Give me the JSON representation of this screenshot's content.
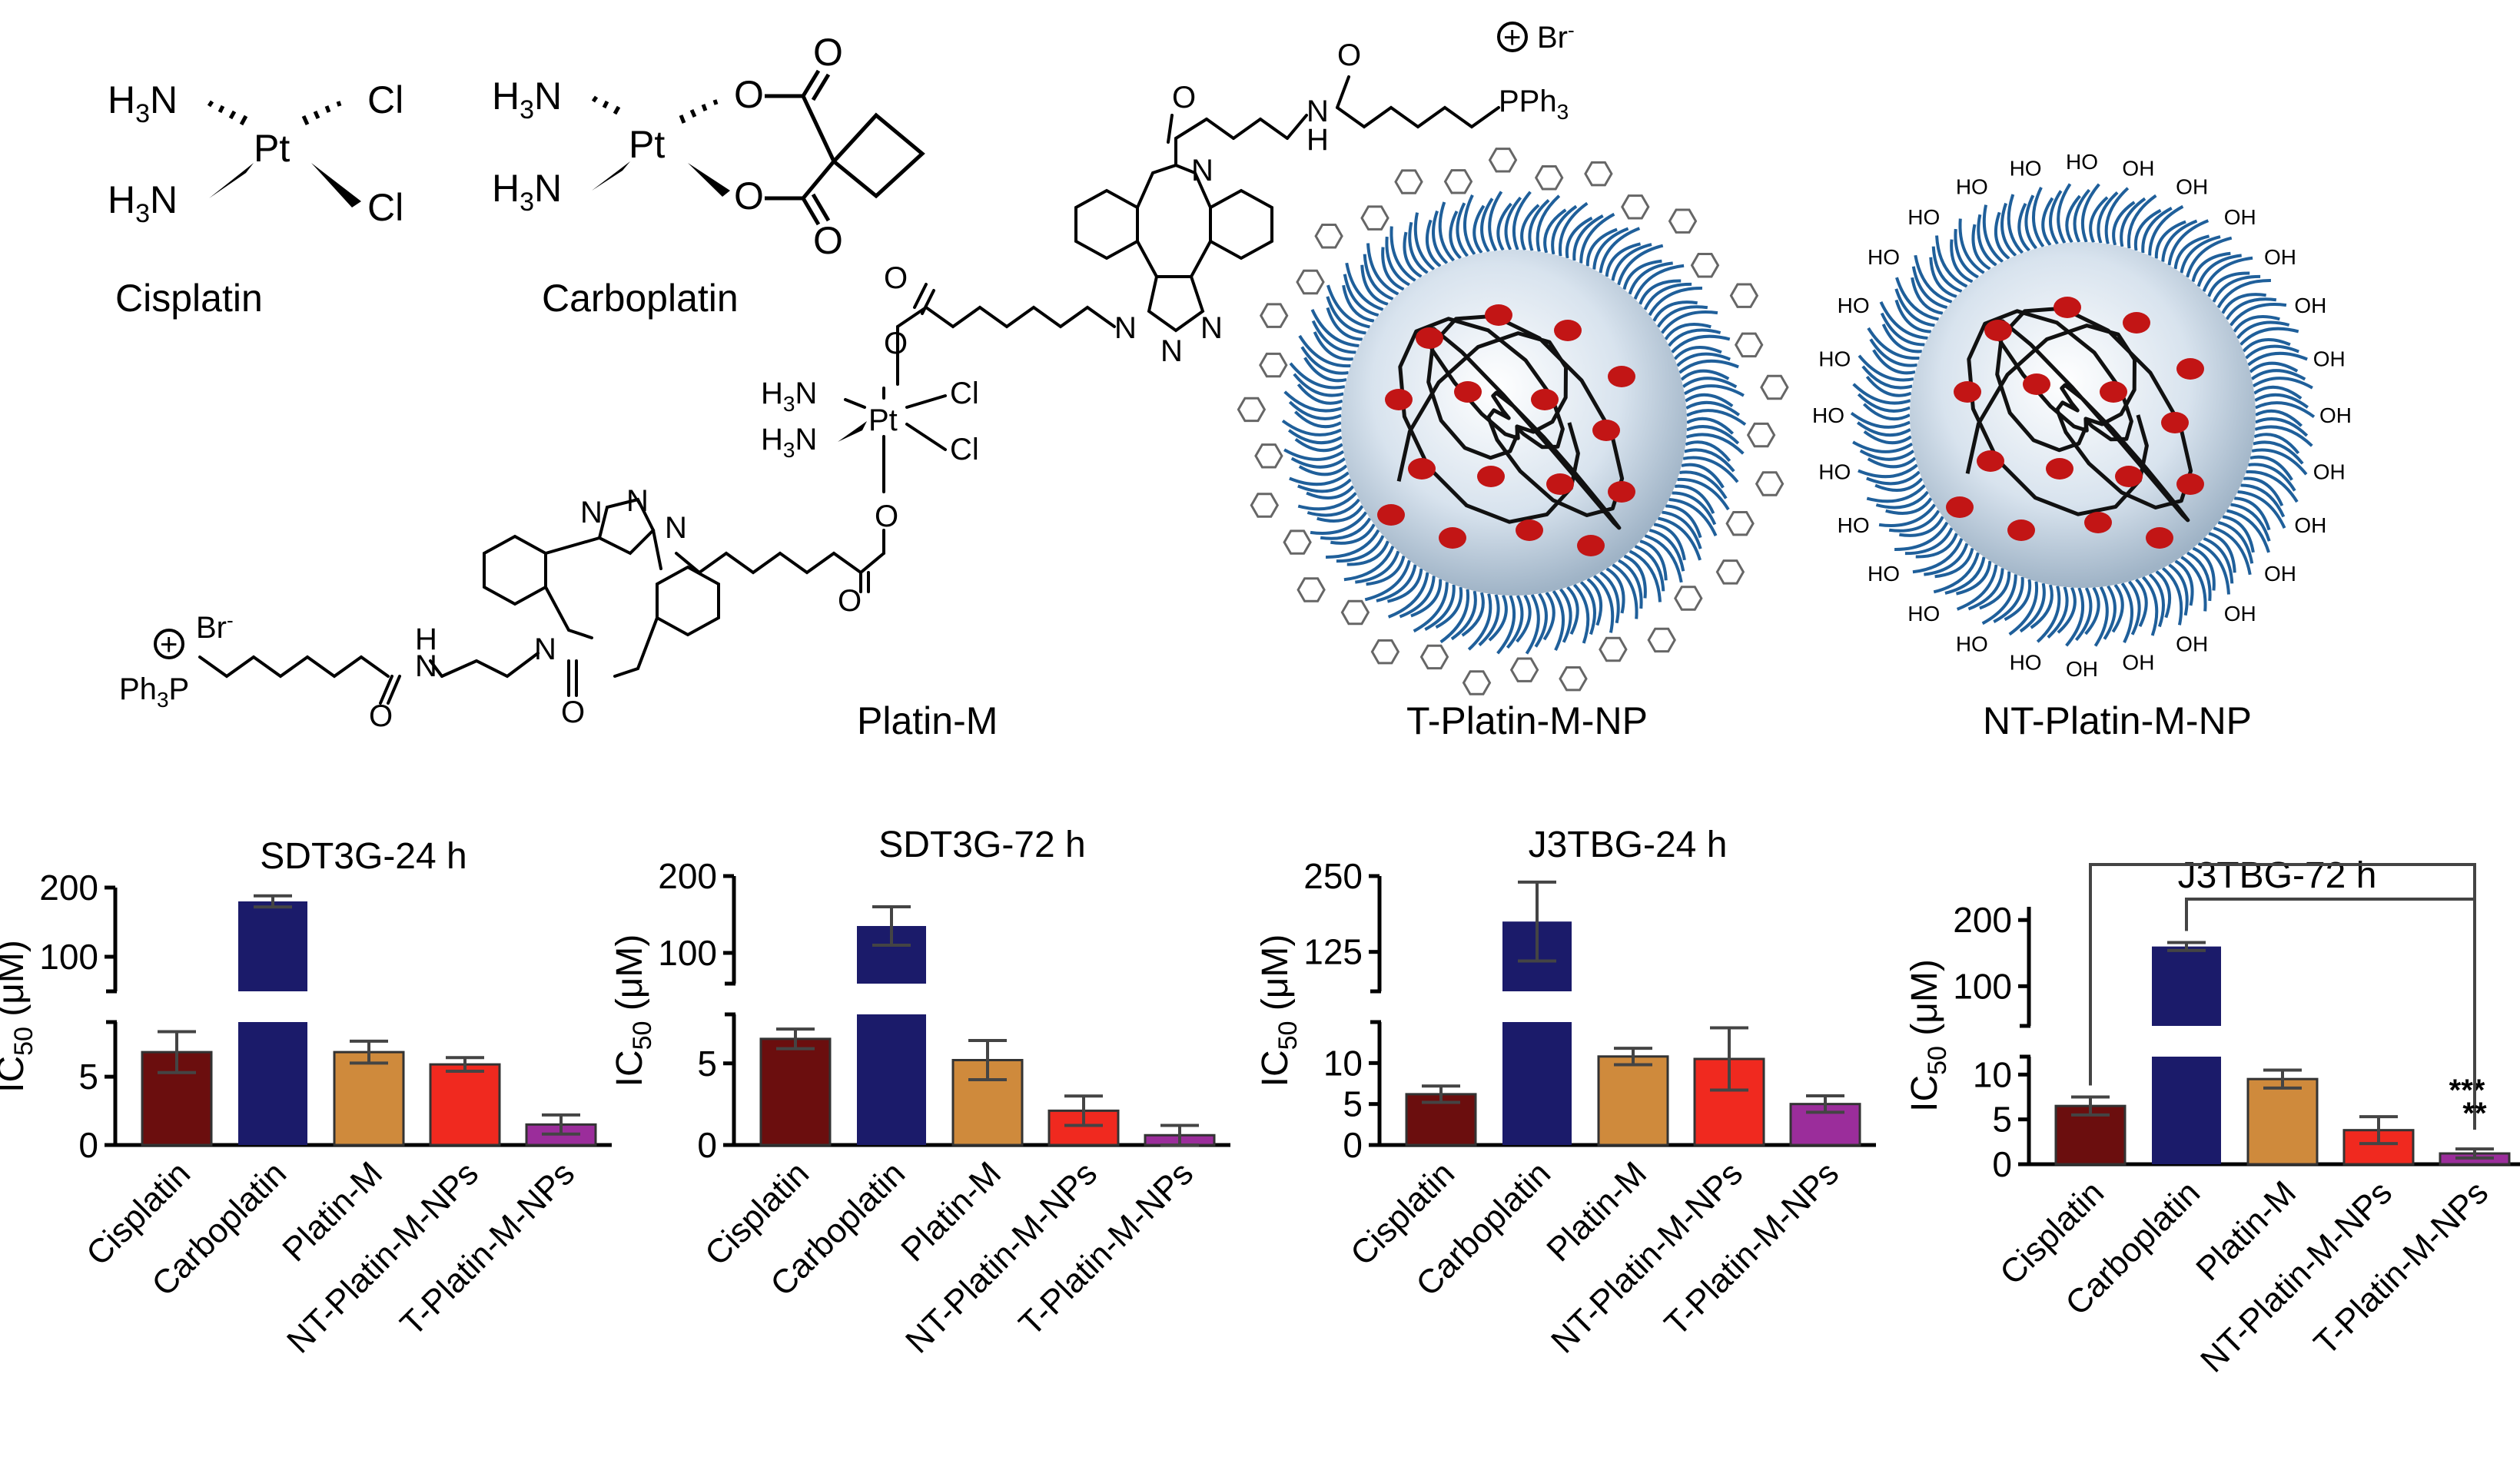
{
  "structures": {
    "cisplatin": {
      "name": "Cisplatin",
      "atoms": {
        "h3n": "H",
        "n": "N",
        "sub3": "3",
        "pt": "Pt",
        "cl": "Cl"
      }
    },
    "carboplatin": {
      "name": "Carboplatin",
      "atoms": {
        "h3n": "H",
        "n": "N",
        "sub3": "3",
        "pt": "Pt",
        "o": "O"
      }
    },
    "platin_m": {
      "name": "Platin-M",
      "charge": "+",
      "counterion": "Br",
      "counterion_sup": "-",
      "pph3": "PPh",
      "pph3_sub": "3",
      "ph3p": "Ph",
      "ph3p_p": "P",
      "amide_nh": "H",
      "n": "N",
      "o": "O"
    },
    "t_np": {
      "name": "T-Platin-M-NP",
      "particle_color": "#c9d8e6"
    },
    "nt_np": {
      "name": "NT-Platin-M-NP",
      "surface_group": "OH",
      "surface_group_rev": "HO"
    }
  },
  "colors": {
    "Cisplatin": "#6b0e0e",
    "Carboplatin": "#1b1b6a",
    "Platin-M": "#cf8a3c",
    "NT-Platin-M-NPs": "#f0291f",
    "T-Platin-M-NPs": "#9b2d9b",
    "particle_shell": "#1f5f9a",
    "drug_dot": "#c21515"
  },
  "chart_data": [
    {
      "type": "bar",
      "title": "SDT3G-24 h",
      "ylabel_main": "IC",
      "ylabel_sub": "50",
      "ylabel_unit": " (μM)",
      "categories": [
        "Cisplatin",
        "Carboplatin",
        "Platin-M",
        "NT-Platin-M-NPs",
        "T-Platin-M-NPs"
      ],
      "values": [
        6.8,
        180,
        6.8,
        5.9,
        1.5
      ],
      "errors": [
        1.5,
        8,
        0.8,
        0.5,
        0.7
      ],
      "axis_break": true,
      "lower_ylim": [
        0,
        9
      ],
      "lower_ticks": [
        0,
        5
      ],
      "upper_ylim": [
        50,
        200
      ],
      "upper_ticks": [
        100,
        200
      ],
      "significance": []
    },
    {
      "type": "bar",
      "title": "SDT3G-72 h",
      "ylabel_main": "IC",
      "ylabel_sub": "50",
      "ylabel_unit": " (μM)",
      "categories": [
        "Cisplatin",
        "Carboplatin",
        "Platin-M",
        "NT-Platin-M-NPs",
        "T-Platin-M-NPs"
      ],
      "values": [
        6.5,
        135,
        5.2,
        2.1,
        0.6
      ],
      "errors": [
        0.6,
        25,
        1.2,
        0.9,
        0.6
      ],
      "axis_break": true,
      "lower_ylim": [
        0,
        8
      ],
      "lower_ticks": [
        0,
        5
      ],
      "upper_ylim": [
        60,
        200
      ],
      "upper_ticks": [
        100,
        200
      ],
      "significance": []
    },
    {
      "type": "bar",
      "title": "J3TBG-24 h",
      "ylabel_main": "IC",
      "ylabel_sub": "50",
      "ylabel_unit": " (μM)",
      "categories": [
        "Cisplatin",
        "Carboplatin",
        "Platin-M",
        "NT-Platin-M-NPs",
        "T-Platin-M-NPs"
      ],
      "values": [
        6.2,
        175,
        10.8,
        10.5,
        5.0
      ],
      "errors": [
        1.0,
        65,
        1.0,
        3.8,
        1.0
      ],
      "axis_break": true,
      "lower_ylim": [
        0,
        15
      ],
      "lower_ticks": [
        0,
        5,
        10
      ],
      "upper_ylim": [
        60,
        250
      ],
      "upper_ticks": [
        125,
        250
      ],
      "significance": []
    },
    {
      "type": "bar",
      "title": "J3TBG-72 h",
      "ylabel_main": "IC",
      "ylabel_sub": "50",
      "ylabel_unit": " (μM)",
      "categories": [
        "Cisplatin",
        "Carboplatin",
        "Platin-M",
        "NT-Platin-M-NPs",
        "T-Platin-M-NPs"
      ],
      "values": [
        6.5,
        160,
        9.5,
        3.8,
        1.2
      ],
      "errors": [
        1.0,
        6,
        1.0,
        1.5,
        0.5
      ],
      "axis_break": true,
      "lower_ylim": [
        0,
        12
      ],
      "lower_ticks": [
        0,
        5,
        10
      ],
      "upper_ylim": [
        40,
        220
      ],
      "upper_ticks": [
        100,
        200
      ],
      "significance": [
        {
          "from": "Cisplatin",
          "to": "T-Platin-M-NPs",
          "label": "***"
        },
        {
          "from": "Carboplatin",
          "to": "T-Platin-M-NPs",
          "label": "**"
        }
      ]
    }
  ]
}
